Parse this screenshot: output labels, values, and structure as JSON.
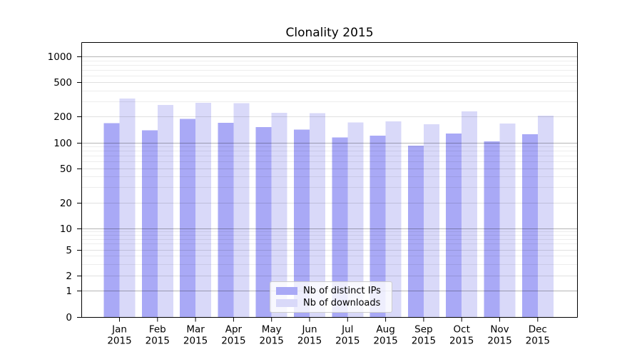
{
  "chart_data": {
    "type": "bar",
    "title": "Clonality 2015",
    "categories": [
      "Jan",
      "Feb",
      "Mar",
      "Apr",
      "May",
      "Jun",
      "Jul",
      "Aug",
      "Sep",
      "Oct",
      "Nov",
      "Dec"
    ],
    "x_tick_second_line": "2015",
    "series": [
      {
        "name": "Nb of distinct IPs",
        "color": "#a9a9f6",
        "values": [
          170,
          140,
          190,
          171,
          153,
          142,
          115,
          121,
          93,
          128,
          104,
          126
        ]
      },
      {
        "name": "Nb of downloads",
        "color": "#d9d9f9",
        "values": [
          327,
          277,
          293,
          290,
          224,
          221,
          172,
          178,
          165,
          232,
          168,
          207
        ]
      }
    ],
    "yscale": "log-with-zero",
    "y_tick_labels": [
      1000,
      500,
      200,
      100,
      50,
      20,
      10,
      5,
      2,
      1,
      0
    ],
    "grid": true,
    "legend_position": "lower center",
    "axis_color": "#000000",
    "grid_major_color": "#b5b5b5",
    "grid_minor_color": "#ececec"
  }
}
